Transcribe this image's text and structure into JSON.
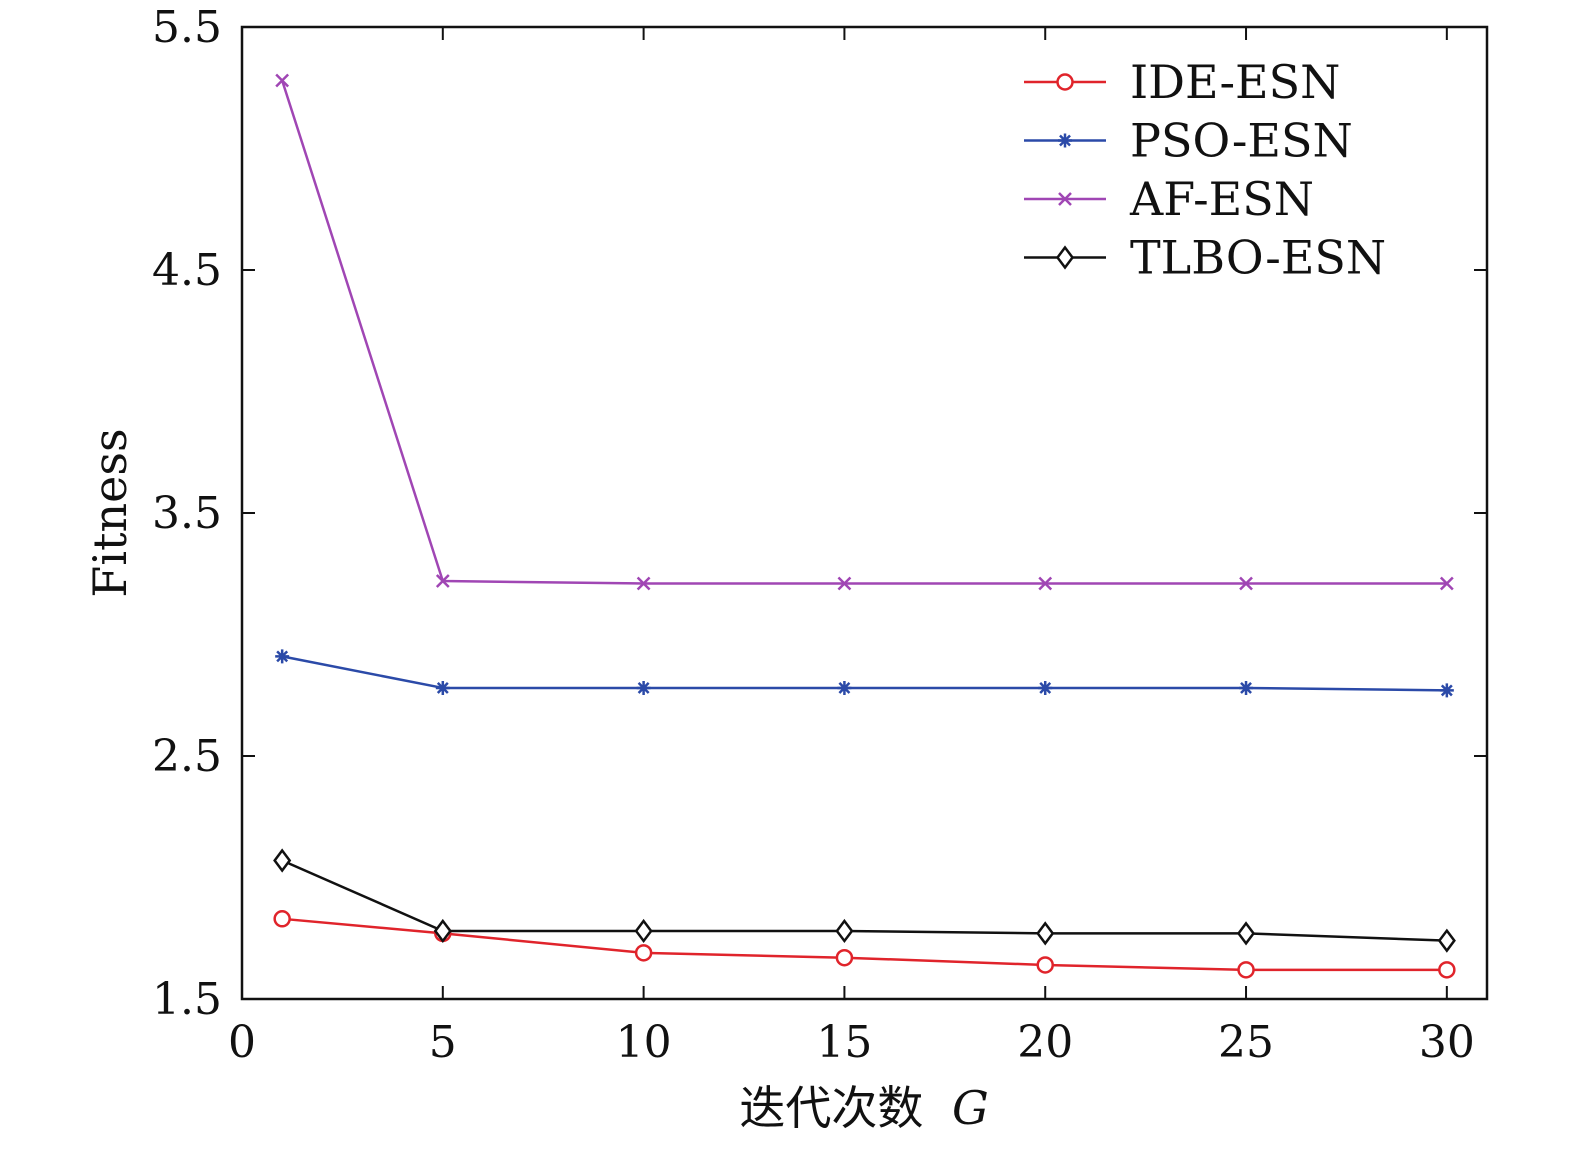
{
  "chart_data": {
    "type": "line",
    "title": "",
    "xlabel": "迭代次数",
    "xlabel_var": "G",
    "ylabel": "Fitness",
    "xlim": [
      0,
      31
    ],
    "ylim": [
      1.5,
      5.5
    ],
    "xticks": [
      0,
      5,
      10,
      15,
      20,
      25,
      30
    ],
    "xtick_labels": [
      "0",
      "5",
      "10",
      "15",
      "20",
      "25",
      "30"
    ],
    "yticks": [
      1.5,
      2.5,
      3.5,
      4.5,
      5.5
    ],
    "ytick_labels": [
      "1.5",
      "2.5",
      "3.5",
      "4.5",
      "5.5"
    ],
    "grid": false,
    "legend_position": "top-right",
    "x": [
      1,
      5,
      10,
      15,
      20,
      25,
      30
    ],
    "series": [
      {
        "name": "IDE-ESN",
        "color": "#e0242b",
        "marker": "circle",
        "values": [
          1.83,
          1.77,
          1.69,
          1.67,
          1.64,
          1.62,
          1.62
        ]
      },
      {
        "name": "PSO-ESN",
        "color": "#2b4aa8",
        "marker": "star",
        "values": [
          2.91,
          2.78,
          2.78,
          2.78,
          2.78,
          2.78,
          2.77
        ]
      },
      {
        "name": "AF-ESN",
        "color": "#a046b4",
        "marker": "x",
        "values": [
          5.28,
          3.22,
          3.21,
          3.21,
          3.21,
          3.21,
          3.21
        ]
      },
      {
        "name": "TLBO-ESN",
        "color": "#111111",
        "marker": "diamond",
        "values": [
          2.07,
          1.78,
          1.78,
          1.78,
          1.77,
          1.77,
          1.74
        ]
      }
    ]
  }
}
